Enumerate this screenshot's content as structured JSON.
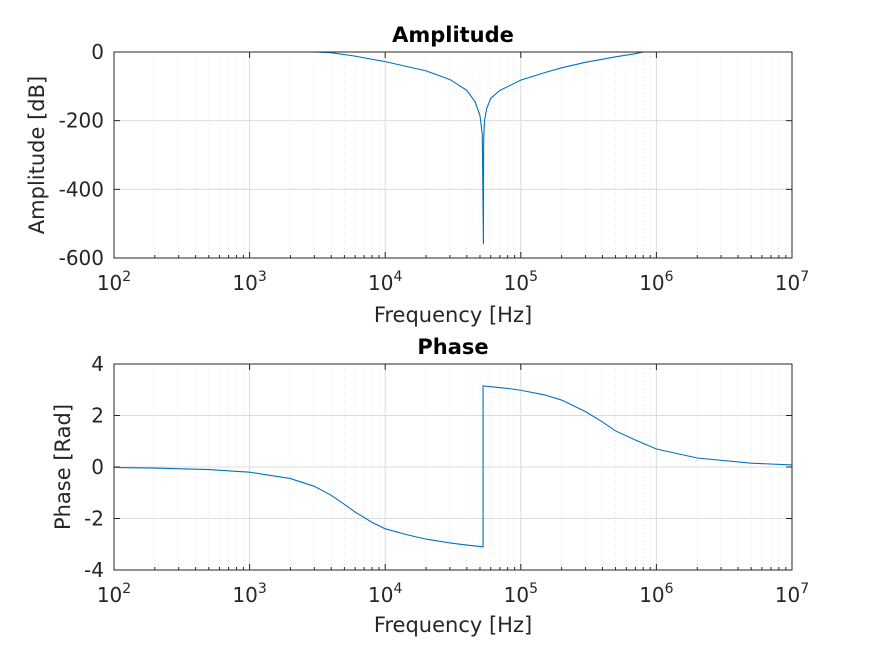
{
  "chart_data": [
    {
      "type": "line",
      "title": "Amplitude",
      "xlabel": "Frequency [Hz]",
      "ylabel": "Amplitude [dB]",
      "xscale": "log",
      "xlim": [
        100,
        10000000
      ],
      "ylim": [
        -600,
        0
      ],
      "xticks": [
        100,
        1000,
        10000,
        100000,
        1000000,
        10000000
      ],
      "xtick_labels": [
        {
          "base": "10",
          "exp": "2"
        },
        {
          "base": "10",
          "exp": "3"
        },
        {
          "base": "10",
          "exp": "4"
        },
        {
          "base": "10",
          "exp": "5"
        },
        {
          "base": "10",
          "exp": "6"
        },
        {
          "base": "10",
          "exp": "7"
        }
      ],
      "yticks": [
        -600,
        -400,
        -200,
        0
      ],
      "ytick_labels": [
        "-600",
        "-400",
        "-200",
        "0"
      ],
      "grid": true,
      "minor_grid_x": true,
      "color": "#0072bd",
      "series": [
        {
          "x": [
            100,
            1000,
            2000,
            3000,
            4000,
            6000,
            10000,
            20000,
            30000,
            40000,
            46000,
            50000,
            52000,
            53000,
            53200,
            53500,
            54000,
            56000,
            60000,
            70000,
            100000,
            150000,
            200000,
            300000,
            500000,
            700000,
            800000,
            1000000,
            10000000
          ],
          "y": [
            0,
            0,
            0,
            0,
            -2,
            -12,
            -28,
            -55,
            -80,
            -112,
            -145,
            -185,
            -240,
            -560,
            -270,
            -235,
            -200,
            -165,
            -135,
            -112,
            -82,
            -60,
            -46,
            -30,
            -14,
            -5,
            0,
            0,
            0
          ]
        }
      ]
    },
    {
      "type": "line",
      "title": "Phase",
      "xlabel": "Frequency [Hz]",
      "ylabel": "Phase [Rad]",
      "xscale": "log",
      "xlim": [
        100,
        10000000
      ],
      "ylim": [
        -4,
        4
      ],
      "xticks": [
        100,
        1000,
        10000,
        100000,
        1000000,
        10000000
      ],
      "xtick_labels": [
        {
          "base": "10",
          "exp": "2"
        },
        {
          "base": "10",
          "exp": "3"
        },
        {
          "base": "10",
          "exp": "4"
        },
        {
          "base": "10",
          "exp": "5"
        },
        {
          "base": "10",
          "exp": "6"
        },
        {
          "base": "10",
          "exp": "7"
        }
      ],
      "yticks": [
        -4,
        -2,
        0,
        2,
        4
      ],
      "ytick_labels": [
        "-4",
        "-2",
        "0",
        "2",
        "4"
      ],
      "grid": true,
      "minor_grid_x": true,
      "color": "#0072bd",
      "series": [
        {
          "x": [
            100,
            200,
            500,
            1000,
            2000,
            3000,
            4000,
            5000,
            6000,
            8000,
            10000,
            15000,
            20000,
            30000,
            40000,
            52700,
            52700,
            60000,
            80000,
            100000,
            150000,
            200000,
            300000,
            400000,
            500000,
            700000,
            1000000,
            2000000,
            5000000,
            10000000
          ],
          "y": [
            -0.02,
            -0.04,
            -0.1,
            -0.2,
            -0.45,
            -0.75,
            -1.1,
            -1.45,
            -1.75,
            -2.15,
            -2.4,
            -2.65,
            -2.8,
            -2.95,
            -3.03,
            -3.1,
            3.15,
            3.12,
            3.05,
            2.98,
            2.8,
            2.6,
            2.15,
            1.75,
            1.4,
            1.05,
            0.7,
            0.35,
            0.15,
            0.08
          ]
        }
      ]
    }
  ]
}
